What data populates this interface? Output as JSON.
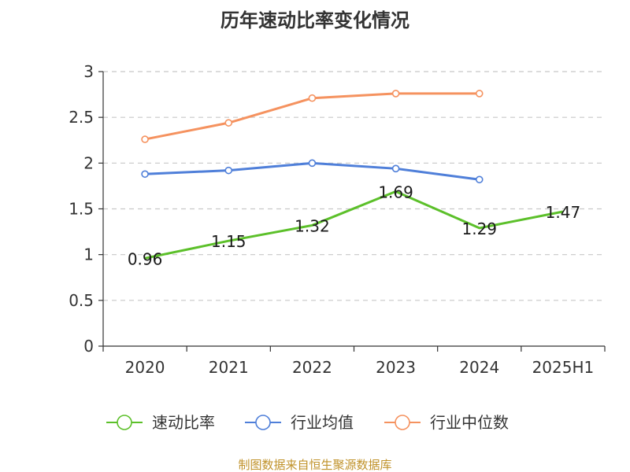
{
  "chart_data": {
    "type": "line",
    "title": "历年速动比率变化情况",
    "categories": [
      "2020",
      "2021",
      "2022",
      "2023",
      "2024",
      "2025H1"
    ],
    "ylim": [
      0,
      3
    ],
    "yticks": [
      "0",
      "0.5",
      "1",
      "1.5",
      "2",
      "2.5",
      "3"
    ],
    "grid": true,
    "legend_position": "bottom",
    "series": [
      {
        "name": "速动比率",
        "color": "#5cc02a",
        "values": [
          0.96,
          1.15,
          1.32,
          1.69,
          1.29,
          1.47
        ],
        "labels": [
          "0.96",
          "1.15",
          "1.32",
          "1.69",
          "1.29",
          "1.47"
        ],
        "show_labels": true,
        "show_markers": false
      },
      {
        "name": "行业均值",
        "color": "#4f7fd9",
        "values": [
          1.88,
          1.92,
          2.0,
          1.94,
          1.82,
          null
        ],
        "show_labels": false,
        "show_markers": true
      },
      {
        "name": "行业中位数",
        "color": "#f5925f",
        "values": [
          2.26,
          2.44,
          2.71,
          2.76,
          2.76,
          null
        ],
        "show_labels": false,
        "show_markers": true
      }
    ]
  },
  "source_text": "制图数据来自恒生聚源数据库"
}
